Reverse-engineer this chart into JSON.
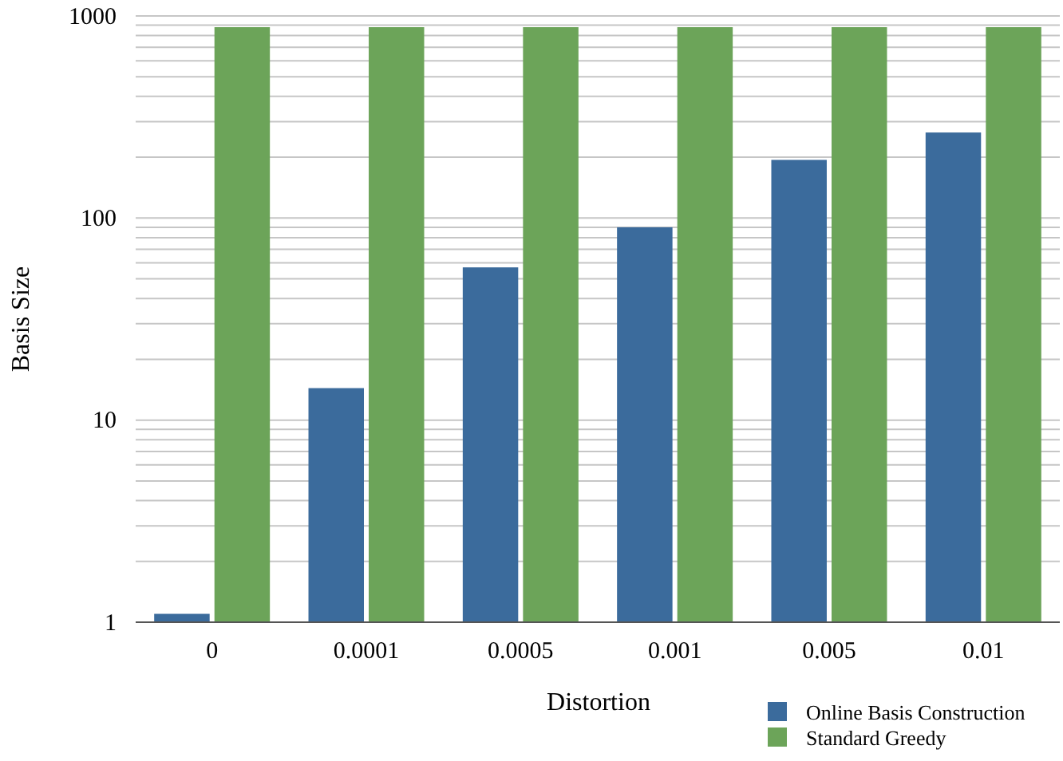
{
  "chart_data": {
    "type": "bar",
    "xlabel": "Distortion",
    "ylabel": "Basis Size",
    "categories": [
      "0",
      "0.0001",
      "0.0005",
      "0.001",
      "0.005",
      "0.01"
    ],
    "series": [
      {
        "name": "Online Basis Construction",
        "color": "#3b6b9c",
        "values": [
          1.1,
          14.4,
          57,
          90,
          194,
          265
        ]
      },
      {
        "name": "Standard Greedy",
        "color": "#6ca459",
        "values": [
          880,
          880,
          880,
          880,
          880,
          880
        ]
      }
    ],
    "log": "y",
    "ylim": [
      1,
      1000
    ],
    "yticks": [
      1,
      {
        "value": 2,
        "label": null
      },
      {
        "value": 3,
        "label": null
      },
      {
        "value": 4,
        "label": null
      },
      {
        "value": 5,
        "label": null
      },
      {
        "value": 6,
        "label": null
      },
      {
        "value": 7,
        "label": null
      },
      {
        "value": 8,
        "label": null
      },
      {
        "value": 9,
        "label": null
      },
      10,
      {
        "value": 20,
        "label": null
      },
      {
        "value": 30,
        "label": null
      },
      {
        "value": 40,
        "label": null
      },
      {
        "value": 50,
        "label": null
      },
      {
        "value": 60,
        "label": null
      },
      {
        "value": 70,
        "label": null
      },
      {
        "value": 80,
        "label": null
      },
      {
        "value": 90,
        "label": null
      },
      100,
      {
        "value": 200,
        "label": null
      },
      {
        "value": 300,
        "label": null
      },
      {
        "value": 400,
        "label": null
      },
      {
        "value": 500,
        "label": null
      },
      {
        "value": 600,
        "label": null
      },
      {
        "value": 700,
        "label": null
      },
      {
        "value": 800,
        "label": null
      },
      {
        "value": 900,
        "label": null
      },
      1000
    ],
    "grid": "y",
    "legend": "bottom right"
  }
}
